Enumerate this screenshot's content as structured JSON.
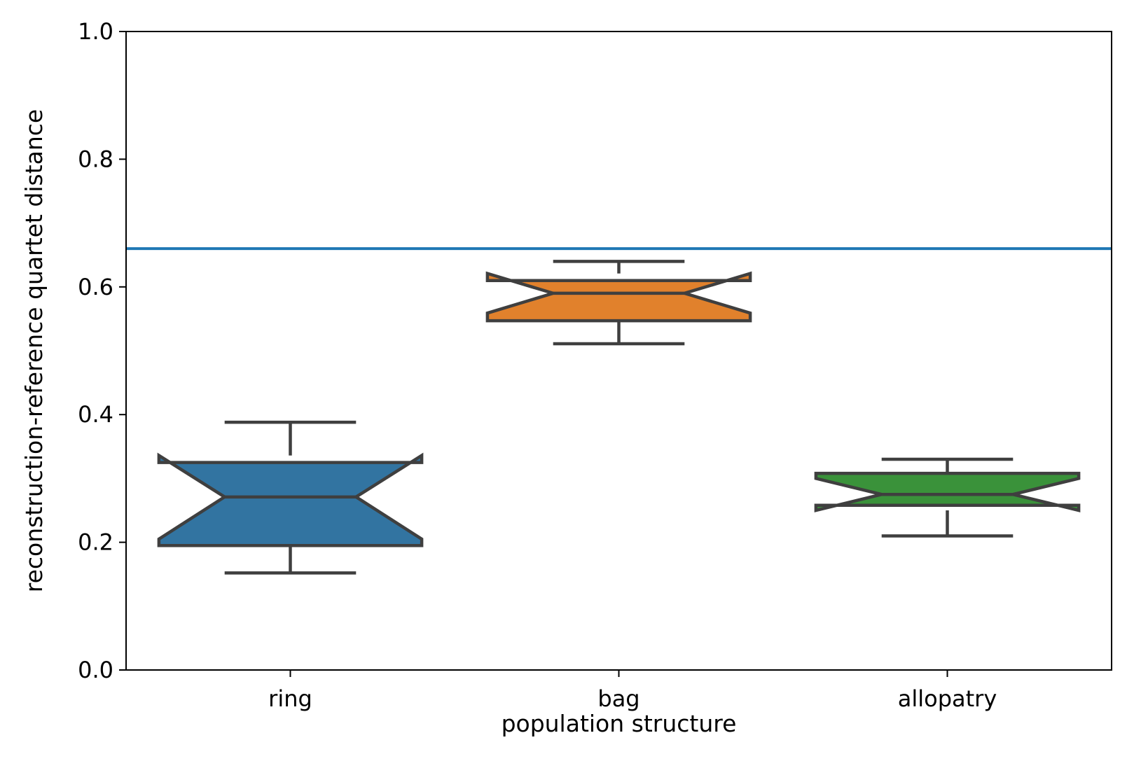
{
  "chart_data": {
    "type": "boxplot",
    "notched": true,
    "title": "",
    "xlabel": "population structure",
    "ylabel": "reconstruction-reference quartet distance",
    "ylim": [
      0.0,
      1.0
    ],
    "yticks": [
      "0.0",
      "0.2",
      "0.4",
      "0.6",
      "0.8",
      "1.0"
    ],
    "categories": [
      "ring",
      "bag",
      "allopatry"
    ],
    "boxes": [
      {
        "category": "ring",
        "color": "#3274a1",
        "whisker_low": 0.152,
        "q1": 0.195,
        "notch_low": 0.205,
        "median": 0.271,
        "notch_high": 0.336,
        "q3": 0.325,
        "whisker_high": 0.388
      },
      {
        "category": "bag",
        "color": "#e1812c",
        "whisker_low": 0.511,
        "q1": 0.547,
        "notch_low": 0.559,
        "median": 0.59,
        "notch_high": 0.621,
        "q3": 0.61,
        "whisker_high": 0.64
      },
      {
        "category": "allopatry",
        "color": "#3a923a",
        "whisker_low": 0.21,
        "q1": 0.258,
        "notch_low": 0.25,
        "median": 0.275,
        "notch_high": 0.3,
        "q3": 0.308,
        "whisker_high": 0.33
      }
    ],
    "reference_line": {
      "y": 0.66,
      "color": "#1f77b4"
    },
    "grid": false,
    "legend": "none"
  }
}
